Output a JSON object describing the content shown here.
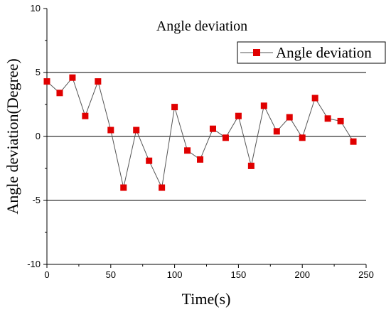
{
  "chart_data": {
    "type": "line",
    "title": "Angle deviation",
    "xlabel": "Time(s)",
    "ylabel": "Angle deviation(Degree)",
    "xlim": [
      0,
      250
    ],
    "ylim": [
      -10,
      10
    ],
    "x_ticks": [
      0,
      50,
      100,
      150,
      200,
      250
    ],
    "y_ticks": [
      -10,
      -5,
      0,
      5,
      10
    ],
    "x_tick_labels": [
      "0",
      "50",
      "100",
      "150",
      "200",
      "250"
    ],
    "y_tick_labels": [
      "-10",
      "-5",
      "0",
      "5",
      "10"
    ],
    "reference_lines_y": [
      5,
      0,
      -5
    ],
    "legend_position": "top-right",
    "series": [
      {
        "name": "Angle deviation",
        "color": "#e00000",
        "line_color": "#555555",
        "marker": "square",
        "x": [
          0,
          10,
          20,
          30,
          40,
          50,
          60,
          70,
          80,
          90,
          100,
          110,
          120,
          130,
          140,
          150,
          160,
          170,
          180,
          190,
          200,
          210,
          220,
          230,
          240
        ],
        "y": [
          4.3,
          3.4,
          4.6,
          1.6,
          4.3,
          0.5,
          -4.0,
          0.5,
          -1.9,
          -4.0,
          2.3,
          -1.1,
          -1.8,
          0.6,
          -0.1,
          1.6,
          -2.3,
          2.4,
          0.4,
          1.5,
          -0.1,
          3.0,
          1.4,
          1.2,
          -0.4
        ]
      }
    ]
  }
}
